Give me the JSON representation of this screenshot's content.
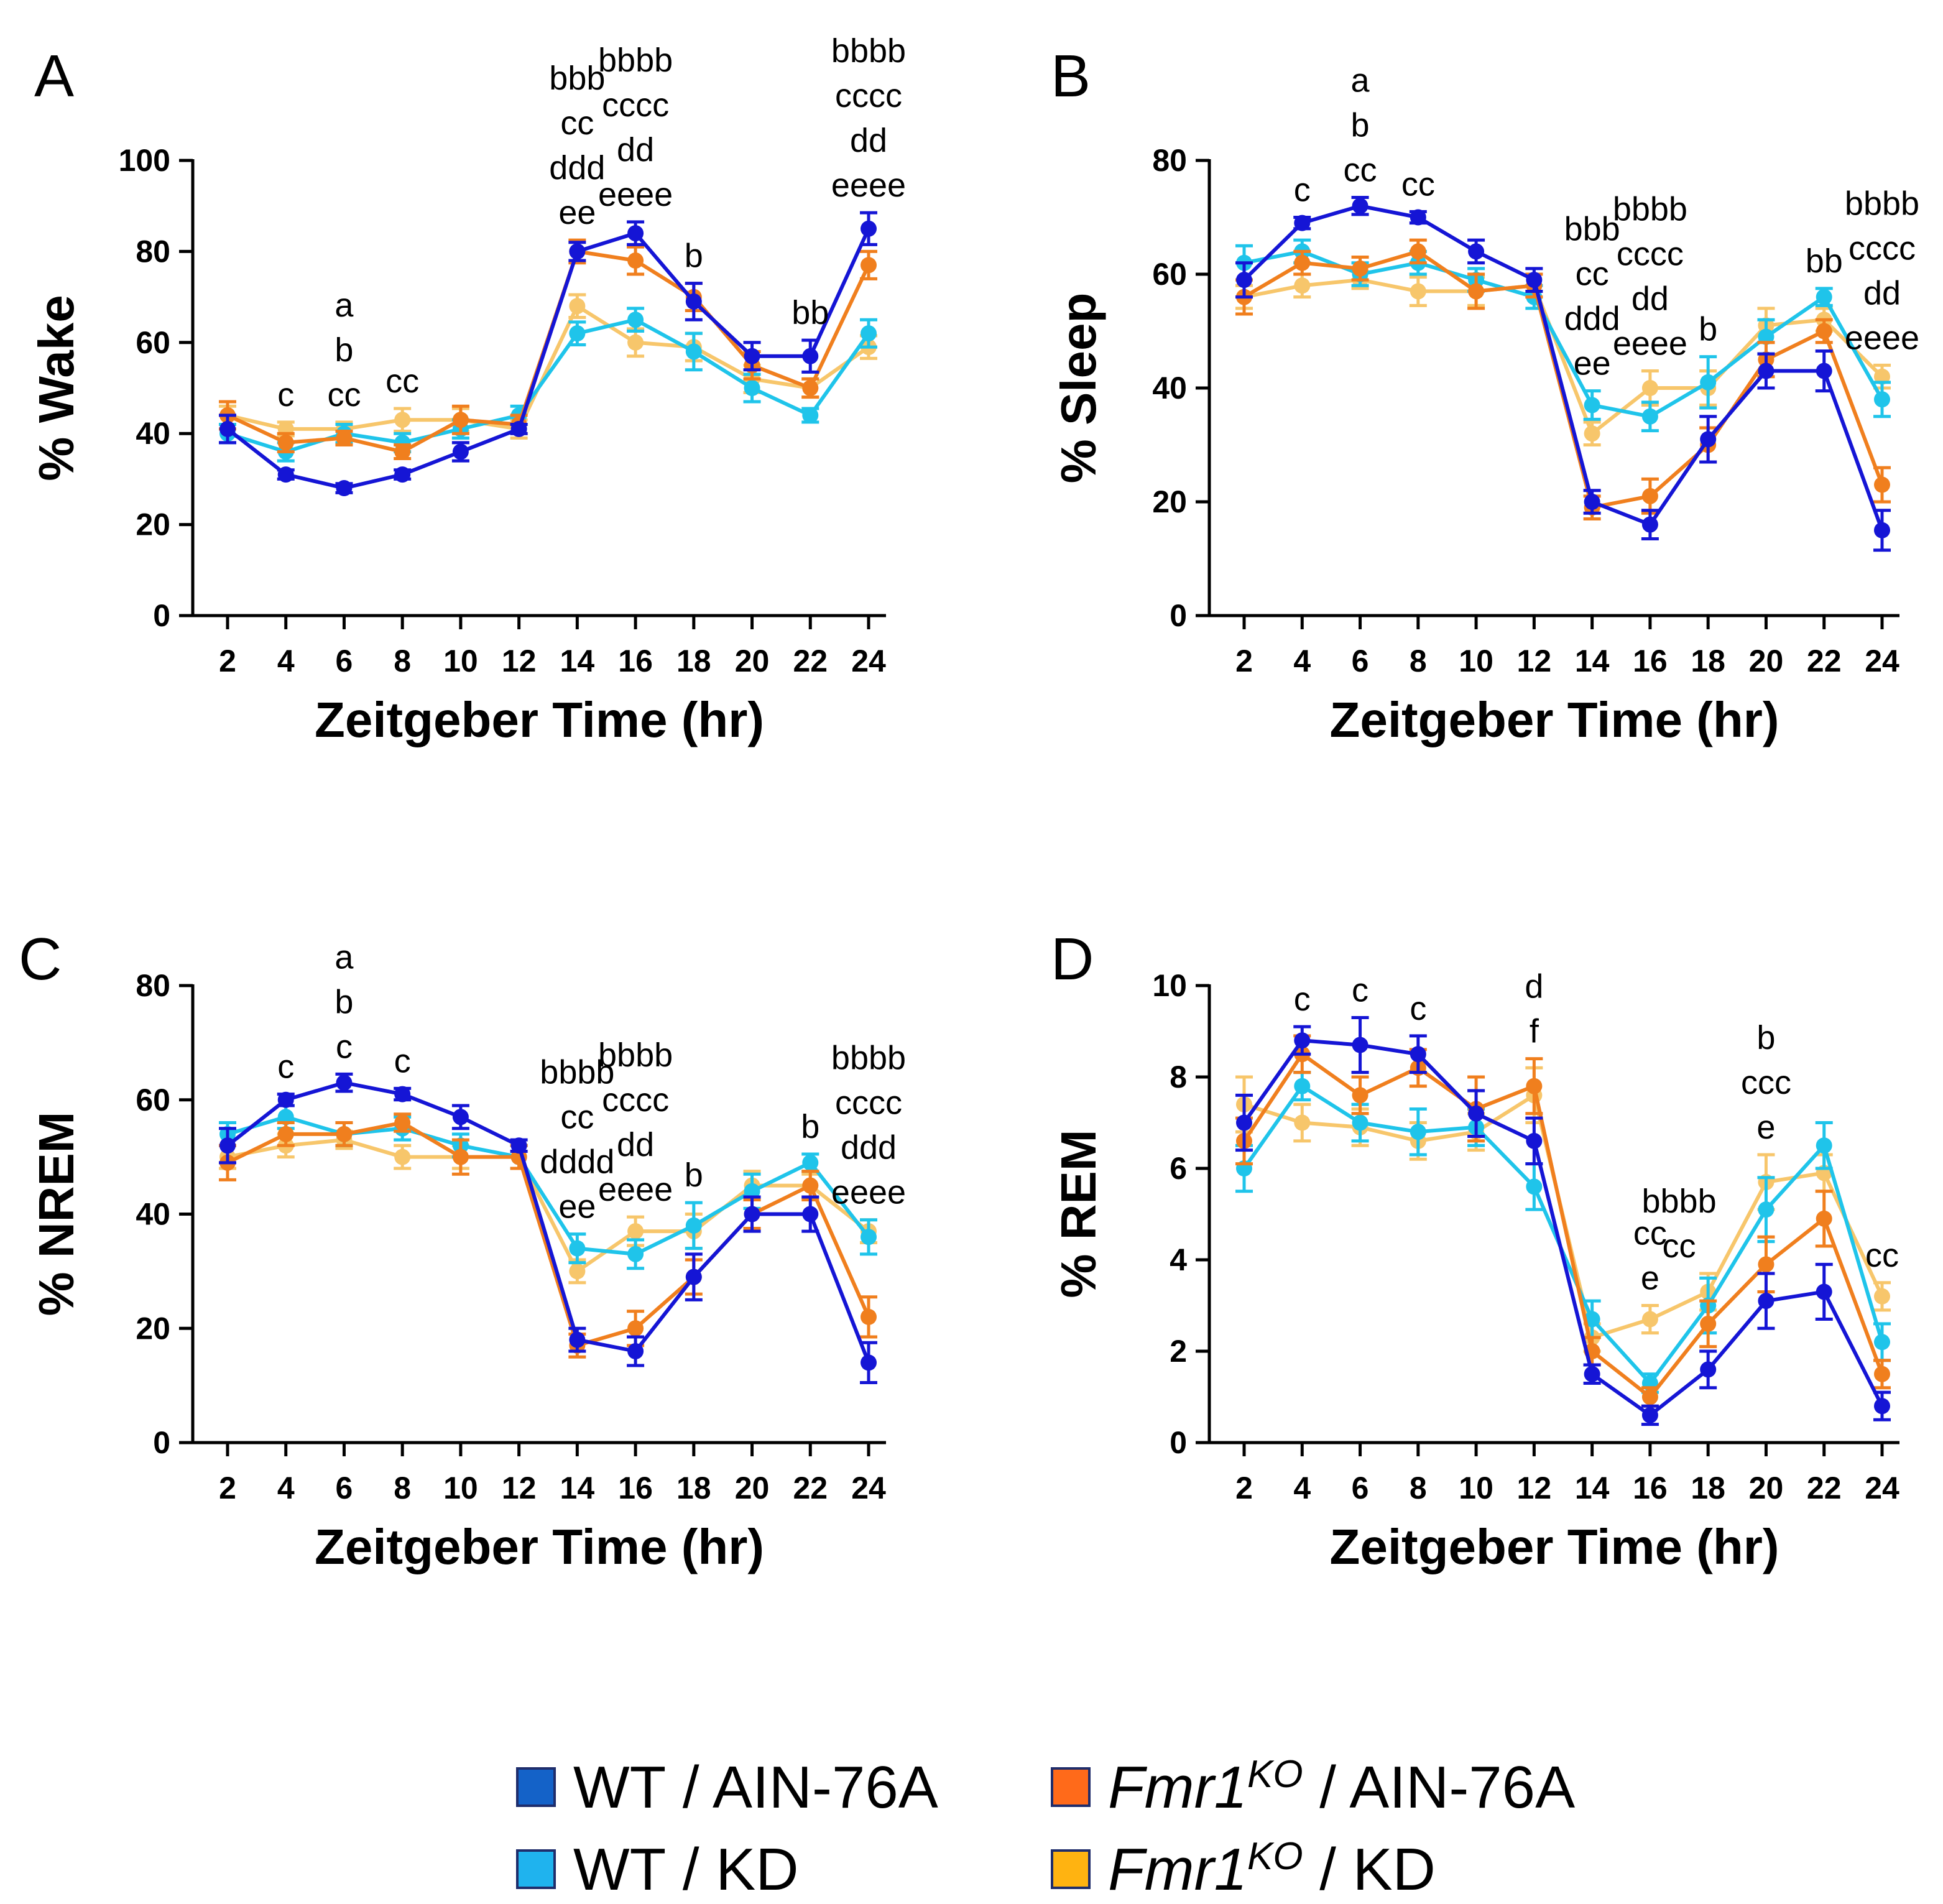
{
  "chart_data": [
    {
      "panel": "A",
      "type": "line",
      "ylabel": "% Wake",
      "xlabel": "Zeitgeber Time (hr)",
      "ylim": [
        0,
        100
      ],
      "yticks": [
        "0",
        "20",
        "40",
        "60",
        "80",
        "100"
      ],
      "categories": [
        "2",
        "4",
        "6",
        "8",
        "10",
        "12",
        "14",
        "16",
        "18",
        "20",
        "22",
        "24"
      ],
      "series": [
        {
          "name": "Fmr1KO / KD",
          "color": "#F7C66B",
          "values": [
            44,
            41,
            41,
            43,
            43,
            41,
            68,
            60,
            59,
            52,
            50,
            59
          ],
          "errors": [
            2,
            1.5,
            1.5,
            2.5,
            2.5,
            2,
            2.5,
            3,
            3,
            3,
            2,
            2.5
          ]
        },
        {
          "name": "WT / KD",
          "color": "#1FC4EA",
          "values": [
            40,
            36,
            40,
            38,
            41,
            44,
            62,
            65,
            58,
            50,
            44,
            62
          ],
          "errors": [
            2,
            2,
            2,
            2,
            2,
            2,
            2.5,
            2.5,
            4,
            3,
            1.5,
            3
          ]
        },
        {
          "name": "Fmr1KO / AIN-76A",
          "color": "#F07F1E",
          "values": [
            44,
            38,
            39,
            36,
            43,
            42,
            80,
            78,
            70,
            55,
            50,
            77
          ],
          "errors": [
            3,
            2,
            1.5,
            1.5,
            3,
            2,
            2.5,
            3,
            3,
            3,
            2,
            3
          ]
        },
        {
          "name": "WT / AIN-76A",
          "color": "#1515D5",
          "values": [
            41,
            31,
            28,
            31,
            36,
            41,
            80,
            84,
            69,
            57,
            57,
            85
          ],
          "errors": [
            3,
            1,
            1,
            1,
            2,
            1,
            2,
            2.5,
            4,
            3,
            3.5,
            3.5
          ]
        }
      ],
      "annotations": [
        {
          "x": "4",
          "lines": [
            "c"
          ]
        },
        {
          "x": "6",
          "lines": [
            "a",
            "b",
            "cc"
          ]
        },
        {
          "x": "8",
          "lines": [
            "cc"
          ]
        },
        {
          "x": "14",
          "lines": [
            "bbb",
            "cc",
            "ddd",
            "ee"
          ]
        },
        {
          "x": "16",
          "lines": [
            "bbbb",
            "cccc",
            "dd",
            "eeee"
          ]
        },
        {
          "x": "18",
          "lines": [
            "b"
          ]
        },
        {
          "x": "22",
          "lines": [
            "bb"
          ]
        },
        {
          "x": "24",
          "lines": [
            "bbbb",
            "cccc",
            "dd",
            "eeee"
          ]
        }
      ]
    },
    {
      "panel": "B",
      "type": "line",
      "ylabel": "% Sleep",
      "xlabel": "Zeitgeber Time (hr)",
      "ylim": [
        0,
        80
      ],
      "yticks": [
        "0",
        "20",
        "40",
        "60",
        "80"
      ],
      "categories": [
        "2",
        "4",
        "6",
        "8",
        "10",
        "12",
        "14",
        "16",
        "18",
        "20",
        "22",
        "24"
      ],
      "series": [
        {
          "name": "Fmr1KO / KD",
          "color": "#F7C66B",
          "values": [
            56,
            58,
            59,
            57,
            57,
            58,
            32,
            40,
            40,
            51,
            52,
            42
          ],
          "errors": [
            2,
            2,
            1.5,
            2.5,
            2.5,
            2,
            2,
            3,
            3,
            3,
            2,
            2
          ]
        },
        {
          "name": "WT / KD",
          "color": "#1FC4EA",
          "values": [
            62,
            64,
            60,
            62,
            59,
            56,
            37,
            35,
            41,
            49,
            56,
            38
          ],
          "errors": [
            3,
            2,
            2,
            2,
            2,
            2,
            2.5,
            2.5,
            4.5,
            3,
            1.5,
            3
          ]
        },
        {
          "name": "Fmr1KO / AIN-76A",
          "color": "#F07F1E",
          "values": [
            56,
            62,
            61,
            64,
            57,
            58,
            19,
            21,
            30,
            45,
            50,
            23
          ],
          "errors": [
            3,
            2,
            2,
            2,
            3,
            2,
            2,
            3,
            3,
            3,
            2,
            3
          ]
        },
        {
          "name": "WT / AIN-76A",
          "color": "#1515D5",
          "values": [
            59,
            69,
            72,
            70,
            64,
            59,
            20,
            16,
            31,
            43,
            43,
            15
          ],
          "errors": [
            3,
            1,
            1.5,
            1,
            2,
            2,
            2,
            2.5,
            4,
            3,
            3.5,
            3.5
          ]
        }
      ],
      "annotations": [
        {
          "x": "4",
          "lines": [
            "c"
          ]
        },
        {
          "x": "6",
          "lines": [
            "a",
            "b",
            "cc"
          ]
        },
        {
          "x": "8",
          "lines": [
            "cc"
          ]
        },
        {
          "x": "14",
          "lines": [
            "bbb",
            "cc",
            "ddd",
            "ee"
          ]
        },
        {
          "x": "16",
          "lines": [
            "bbbb",
            "cccc",
            "dd",
            "eeee"
          ]
        },
        {
          "x": "18",
          "lines": [
            "b"
          ]
        },
        {
          "x": "22",
          "lines": [
            "bb"
          ]
        },
        {
          "x": "24",
          "lines": [
            "bbbb",
            "cccc",
            "dd",
            "eeee"
          ]
        }
      ]
    },
    {
      "panel": "C",
      "type": "line",
      "ylabel": "% NREM",
      "xlabel": "Zeitgeber Time (hr)",
      "ylim": [
        0,
        80
      ],
      "yticks": [
        "0",
        "20",
        "40",
        "60",
        "80"
      ],
      "categories": [
        "2",
        "4",
        "6",
        "8",
        "10",
        "12",
        "14",
        "16",
        "18",
        "20",
        "22",
        "24"
      ],
      "series": [
        {
          "name": "Fmr1KO / KD",
          "color": "#F7C66B",
          "values": [
            50,
            52,
            53,
            50,
            50,
            50,
            30,
            37,
            37,
            45,
            45,
            37
          ],
          "errors": [
            2,
            2,
            1.5,
            2,
            2,
            2,
            2,
            2.5,
            3,
            2.5,
            2,
            2
          ]
        },
        {
          "name": "WT / KD",
          "color": "#1FC4EA",
          "values": [
            54,
            57,
            54,
            55,
            52,
            50,
            34,
            33,
            38,
            44,
            49,
            36
          ],
          "errors": [
            2,
            2,
            2,
            2,
            2,
            2,
            2.5,
            2.5,
            4,
            3,
            1.5,
            3
          ]
        },
        {
          "name": "Fmr1KO / AIN-76A",
          "color": "#F07F1E",
          "values": [
            49,
            54,
            54,
            56,
            50,
            50,
            17,
            20,
            29,
            40,
            45,
            22
          ],
          "errors": [
            3,
            2,
            2,
            1.5,
            3,
            2,
            2,
            3,
            3,
            2.5,
            2.5,
            3.5
          ]
        },
        {
          "name": "WT / AIN-76A",
          "color": "#1515D5",
          "values": [
            52,
            60,
            63,
            61,
            57,
            52,
            18,
            16,
            29,
            40,
            40,
            14
          ],
          "errors": [
            3,
            1,
            1.5,
            1,
            2,
            1,
            2,
            2.5,
            4,
            3,
            3,
            3.5
          ]
        }
      ],
      "annotations": [
        {
          "x": "4",
          "lines": [
            "c"
          ]
        },
        {
          "x": "6",
          "lines": [
            "a",
            "b",
            "c"
          ]
        },
        {
          "x": "8",
          "lines": [
            "c"
          ]
        },
        {
          "x": "14",
          "lines": [
            "bbbb",
            "cc",
            "dddd",
            "ee"
          ]
        },
        {
          "x": "16",
          "lines": [
            "bbbb",
            "cccc",
            "dd",
            "eeee"
          ]
        },
        {
          "x": "18",
          "lines": [
            "b"
          ]
        },
        {
          "x": "22",
          "lines": [
            "b"
          ]
        },
        {
          "x": "24",
          "lines": [
            "bbbb",
            "cccc",
            "ddd",
            "eeee"
          ]
        }
      ]
    },
    {
      "panel": "D",
      "type": "line",
      "ylabel": "% REM",
      "xlabel": "Zeitgeber Time (hr)",
      "ylim": [
        0,
        10
      ],
      "yticks": [
        "0",
        "2",
        "4",
        "6",
        "8",
        "10"
      ],
      "categories": [
        "2",
        "4",
        "6",
        "8",
        "10",
        "12",
        "14",
        "16",
        "18",
        "20",
        "22",
        "24"
      ],
      "series": [
        {
          "name": "Fmr1KO / KD",
          "color": "#F7C66B",
          "values": [
            7.4,
            7.0,
            6.9,
            6.6,
            6.8,
            7.6,
            2.3,
            2.7,
            3.3,
            5.7,
            5.9,
            3.2
          ],
          "errors": [
            0.6,
            0.4,
            0.4,
            0.4,
            0.4,
            0.6,
            0.3,
            0.3,
            0.4,
            0.6,
            0.4,
            0.3
          ]
        },
        {
          "name": "WT / KD",
          "color": "#1FC4EA",
          "values": [
            6.0,
            7.8,
            7.0,
            6.8,
            6.9,
            5.6,
            2.7,
            1.3,
            3.0,
            5.1,
            6.5,
            2.2
          ],
          "errors": [
            0.5,
            0.3,
            0.4,
            0.5,
            0.4,
            0.5,
            0.4,
            0.2,
            0.6,
            0.7,
            0.5,
            0.4
          ]
        },
        {
          "name": "Fmr1KO / AIN-76A",
          "color": "#F07F1E",
          "values": [
            6.6,
            8.5,
            7.6,
            8.2,
            7.3,
            7.8,
            2.0,
            1.0,
            2.6,
            3.9,
            4.9,
            1.5
          ],
          "errors": [
            0.5,
            0.4,
            0.4,
            0.4,
            0.7,
            0.6,
            0.3,
            0.2,
            0.5,
            0.6,
            0.6,
            0.3
          ]
        },
        {
          "name": "WT / AIN-76A",
          "color": "#1515D5",
          "values": [
            7.0,
            8.8,
            8.7,
            8.5,
            7.2,
            6.6,
            1.5,
            0.6,
            1.6,
            3.1,
            3.3,
            0.8
          ],
          "errors": [
            0.6,
            0.3,
            0.6,
            0.4,
            0.5,
            0.5,
            0.2,
            0.2,
            0.4,
            0.6,
            0.6,
            0.3
          ]
        }
      ],
      "annotations": [
        {
          "x": "4",
          "lines": [
            "c"
          ]
        },
        {
          "x": "6",
          "lines": [
            "c"
          ]
        },
        {
          "x": "8",
          "lines": [
            "c"
          ]
        },
        {
          "x": "12",
          "lines": [
            "d",
            "f"
          ]
        },
        {
          "x": "16",
          "lines": [
            "cc",
            "e"
          ]
        },
        {
          "x": "17",
          "lines": [
            "bbbb",
            "cc"
          ]
        },
        {
          "x": "20",
          "lines": [
            "b",
            "ccc",
            "e"
          ]
        },
        {
          "x": "24",
          "lines": [
            "cc"
          ]
        }
      ]
    }
  ],
  "legend": [
    {
      "prefix": "WT",
      "sup": "",
      "suffix": " / AIN-76A",
      "color": "#1462C8"
    },
    {
      "prefix": "Fmr1",
      "sup": "KO",
      "suffix": " / AIN-76A",
      "color": "#FF6A1A"
    },
    {
      "prefix": "WT",
      "sup": "",
      "suffix": " / KD",
      "color": "#1FB3EE"
    },
    {
      "prefix": "Fmr1",
      "sup": "KO",
      "suffix": " / KD",
      "color": "#FFB311"
    }
  ]
}
